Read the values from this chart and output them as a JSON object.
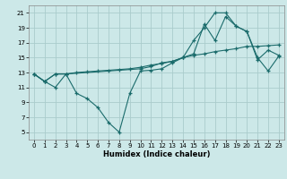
{
  "xlabel": "Humidex (Indice chaleur)",
  "bg_color": "#cce8e8",
  "grid_color": "#aacccc",
  "line_color": "#1a6b6b",
  "xlim": [
    -0.5,
    23.5
  ],
  "ylim": [
    4,
    22
  ],
  "yticks": [
    5,
    7,
    9,
    11,
    13,
    15,
    17,
    19,
    21
  ],
  "xticks": [
    0,
    1,
    2,
    3,
    4,
    5,
    6,
    7,
    8,
    9,
    10,
    11,
    12,
    13,
    14,
    15,
    16,
    17,
    18,
    19,
    20,
    21,
    22,
    23
  ],
  "line1_x": [
    0,
    1,
    2,
    3,
    4,
    5,
    6,
    7,
    8,
    9,
    10,
    11,
    12,
    13,
    14,
    15,
    16,
    17,
    18,
    19,
    20,
    21,
    22,
    23
  ],
  "line1_y": [
    12.8,
    11.8,
    11.0,
    12.8,
    10.2,
    9.5,
    8.3,
    6.3,
    5.0,
    10.2,
    13.2,
    13.3,
    13.5,
    14.3,
    15.0,
    17.3,
    19.0,
    21.0,
    21.0,
    19.2,
    18.5,
    15.0,
    13.2,
    15.2
  ],
  "line2_x": [
    0,
    1,
    2,
    3,
    4,
    5,
    6,
    7,
    8,
    9,
    10,
    11,
    12,
    13,
    14,
    15,
    16,
    17,
    18,
    19,
    20,
    21,
    22,
    23
  ],
  "line2_y": [
    12.8,
    11.8,
    12.8,
    12.8,
    13.0,
    13.1,
    13.2,
    13.3,
    13.4,
    13.5,
    13.7,
    14.0,
    14.2,
    14.5,
    15.0,
    15.3,
    15.5,
    15.8,
    16.0,
    16.2,
    16.5,
    16.5,
    16.6,
    16.7
  ],
  "line3_x": [
    0,
    1,
    2,
    3,
    10,
    11,
    12,
    13,
    14,
    15,
    16,
    17,
    18,
    19,
    20,
    21,
    22,
    23
  ],
  "line3_y": [
    12.8,
    11.8,
    12.8,
    12.8,
    13.5,
    13.8,
    14.3,
    14.5,
    15.0,
    15.5,
    19.5,
    17.3,
    20.5,
    19.2,
    18.5,
    14.7,
    16.0,
    15.3
  ],
  "marker_size": 3.5,
  "line_width": 0.8
}
